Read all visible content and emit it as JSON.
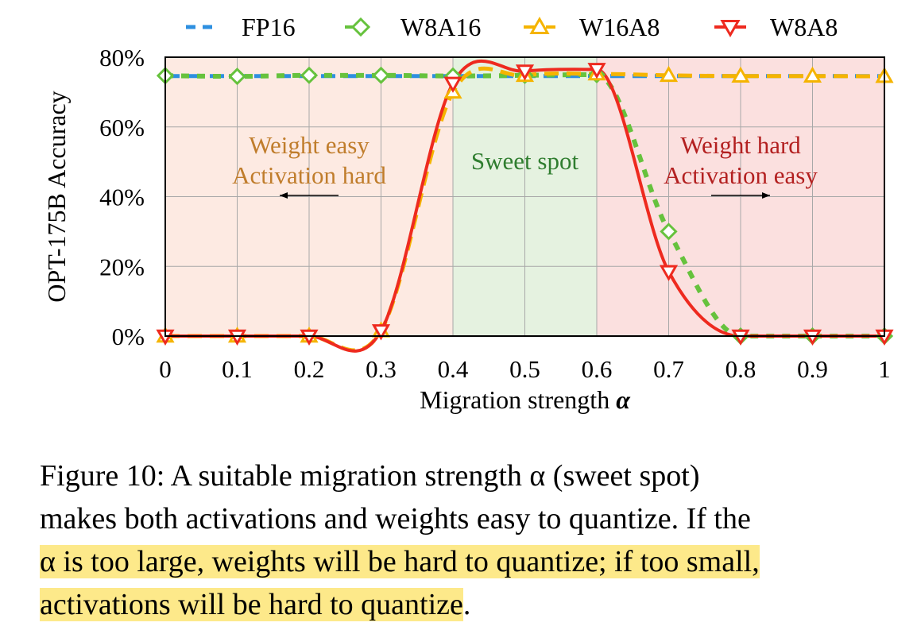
{
  "chart_data": {
    "type": "line",
    "xlabel_prefix": "Migration strength ",
    "xlabel_symbol": "α",
    "ylabel": "OPT-175B Accuracy",
    "x_ticks": [
      "0",
      "0.1",
      "0.2",
      "0.3",
      "0.4",
      "0.5",
      "0.6",
      "0.7",
      "0.8",
      "0.9",
      "1"
    ],
    "y_ticks": [
      "0%",
      "20%",
      "40%",
      "60%",
      "80%"
    ],
    "xlim": [
      0,
      1
    ],
    "ylim": [
      0,
      80
    ],
    "grid": true,
    "legend_position": "top",
    "regions": [
      {
        "x0": 0.0,
        "x1": 0.4,
        "color": "#fdeae2",
        "label_lines": [
          "Weight easy",
          "Activation hard"
        ],
        "label_color": "#c07d2c",
        "arrow": "left"
      },
      {
        "x0": 0.4,
        "x1": 0.6,
        "color": "#e5f2e0",
        "label_lines": [
          "Sweet spot"
        ],
        "label_color": "#2f7d2f",
        "arrow": "none"
      },
      {
        "x0": 0.6,
        "x1": 1.0,
        "color": "#fbe0df",
        "label_lines": [
          "Weight hard",
          "Activation easy"
        ],
        "label_color": "#b32020",
        "arrow": "right"
      }
    ],
    "x": [
      0,
      0.1,
      0.2,
      0.3,
      0.4,
      0.5,
      0.6,
      0.7,
      0.8,
      0.9,
      1.0
    ],
    "series": [
      {
        "name": "FP16",
        "color": "#2e8fe0",
        "marker": "none",
        "dash": "dash",
        "values": [
          74.6,
          74.6,
          74.6,
          74.6,
          74.6,
          74.6,
          74.6,
          74.6,
          74.6,
          74.6,
          74.6
        ]
      },
      {
        "name": "W8A16",
        "color": "#66c23d",
        "marker": "diamond",
        "dash": "dot",
        "values": [
          74.7,
          74.5,
          74.8,
          74.8,
          74.6,
          74.8,
          75.0,
          30.0,
          0.0,
          0.0,
          0.0
        ]
      },
      {
        "name": "W16A8",
        "color": "#f5b400",
        "marker": "triangle-up",
        "dash": "dash",
        "values": [
          0.0,
          0.0,
          0.0,
          1.5,
          70.0,
          74.8,
          75.2,
          74.8,
          74.6,
          74.6,
          74.5
        ]
      },
      {
        "name": "W8A8",
        "color": "#ee2a1f",
        "marker": "triangle-down",
        "dash": "solid",
        "values": [
          0.0,
          0.0,
          0.0,
          1.5,
          72.5,
          76.0,
          76.5,
          18.5,
          0.0,
          0.0,
          0.0
        ]
      }
    ]
  },
  "caption": {
    "line1": "Figure 10:  A suitable migration strength α (sweet spot)",
    "line2": "makes both activations and weights easy to quantize. If the",
    "line3": "α is too large, weights will be hard to quantize; if too small,",
    "line4": "activations will be hard to quantize",
    "line4_end": "."
  }
}
